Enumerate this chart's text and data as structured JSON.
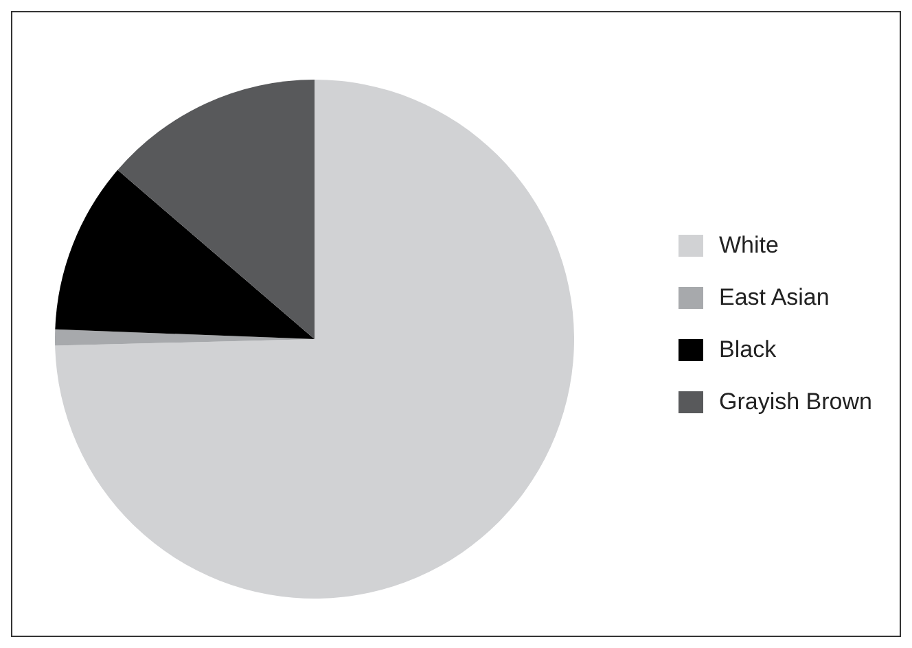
{
  "chart_data": {
    "type": "pie",
    "categories": [
      "White",
      "East Asian",
      "Black",
      "Grayish Brown"
    ],
    "values": [
      74.6,
      1.0,
      10.7,
      13.7
    ],
    "colors": [
      "#d1d2d4",
      "#a7a9ac",
      "#000000",
      "#58595b"
    ],
    "legend": "right"
  }
}
